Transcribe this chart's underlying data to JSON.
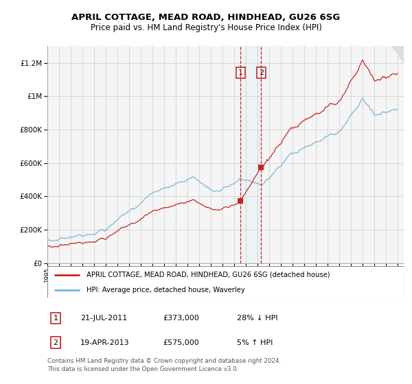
{
  "title": "APRIL COTTAGE, MEAD ROAD, HINDHEAD, GU26 6SG",
  "subtitle": "Price paid vs. HM Land Registry's House Price Index (HPI)",
  "legend_line1": "APRIL COTTAGE, MEAD ROAD, HINDHEAD, GU26 6SG (detached house)",
  "legend_line2": "HPI: Average price, detached house, Waverley",
  "footnote1": "Contains HM Land Registry data © Crown copyright and database right 2024.",
  "footnote2": "This data is licensed under the Open Government Licence v3.0.",
  "hpi_color": "#7ab4d8",
  "price_color": "#cc2222",
  "sale1_date": "21-JUL-2011",
  "sale1_price": 373000,
  "sale1_label": "28% ↓ HPI",
  "sale2_date": "19-APR-2013",
  "sale2_price": 575000,
  "sale2_label": "5% ↑ HPI",
  "sale1_x": 2011.54,
  "sale2_x": 2013.29,
  "ylim_max": 1300000,
  "xlim_min": 1995,
  "xlim_max": 2025.5,
  "background_color": "#ffffff"
}
